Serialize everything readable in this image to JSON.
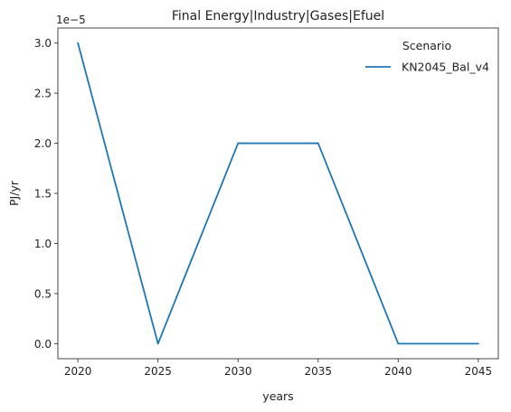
{
  "chart_data": {
    "type": "line",
    "title": "Final Energy|Industry|Gases|Efuel",
    "xlabel": "years",
    "ylabel": "PJ/yr",
    "y_offset_label": "1e−5",
    "x_ticks": [
      "2020",
      "2025",
      "2030",
      "2035",
      "2040",
      "2045"
    ],
    "y_ticks": [
      "0.0",
      "0.5",
      "1.0",
      "1.5",
      "2.0",
      "2.5",
      "3.0"
    ],
    "xlim": [
      2018.75,
      2046.25
    ],
    "ylim": [
      -1.5e-06,
      3.15e-05
    ],
    "x": [
      2020,
      2025,
      2030,
      2035,
      2040,
      2045
    ],
    "series": [
      {
        "name": "KN2045_Bal_v4",
        "color": "#1f77b4",
        "values": [
          3e-05,
          0.0,
          2e-05,
          2e-05,
          0.0,
          0.0
        ]
      }
    ],
    "legend": {
      "title": "Scenario",
      "placement": "top-right"
    },
    "grid": false
  }
}
